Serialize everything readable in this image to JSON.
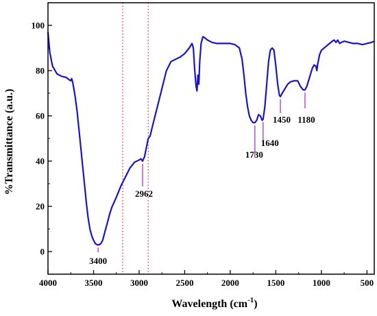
{
  "chart_data": {
    "type": "line",
    "xlabel": "Wavelength (cm",
    "xlabel_sup": "-1",
    "xlabel_end": ")",
    "ylabel": "%Transmittance (a.u.)",
    "xlim": [
      4000,
      420
    ],
    "ylim": [
      -10,
      110
    ],
    "x_reversed": true,
    "x_ticks": [
      4000,
      3500,
      3000,
      2500,
      2000,
      1500,
      1000,
      500
    ],
    "x_tick_labels": [
      "4000",
      "3500",
      "3000",
      "2500",
      "2000",
      "1500",
      "1000",
      "500"
    ],
    "y_ticks": [
      0,
      20,
      40,
      60,
      80,
      100
    ],
    "y_tick_labels": [
      "0",
      "20",
      "40",
      "60",
      "80",
      "100"
    ],
    "grid": false,
    "line_color": "#1a12c8",
    "marker_color": "#b24fd6",
    "ref_line_color": "#e0302a",
    "reference_lines_x": [
      3180,
      2900
    ],
    "series": [
      {
        "points": [
          [
            4000,
            97
          ],
          [
            3980,
            88
          ],
          [
            3950,
            82
          ],
          [
            3900,
            78.5
          ],
          [
            3850,
            77.5
          ],
          [
            3800,
            77
          ],
          [
            3770,
            76
          ],
          [
            3750,
            75.5
          ],
          [
            3740,
            76.5
          ],
          [
            3730,
            75
          ],
          [
            3720,
            73
          ],
          [
            3700,
            68
          ],
          [
            3680,
            62
          ],
          [
            3660,
            54
          ],
          [
            3640,
            46
          ],
          [
            3620,
            38
          ],
          [
            3600,
            30
          ],
          [
            3580,
            22
          ],
          [
            3560,
            15
          ],
          [
            3540,
            10
          ],
          [
            3520,
            7
          ],
          [
            3500,
            5
          ],
          [
            3480,
            3.5
          ],
          [
            3460,
            3
          ],
          [
            3440,
            3
          ],
          [
            3420,
            3.5
          ],
          [
            3400,
            5
          ],
          [
            3380,
            8
          ],
          [
            3360,
            11
          ],
          [
            3340,
            14
          ],
          [
            3320,
            17
          ],
          [
            3300,
            19.5
          ],
          [
            3250,
            24
          ],
          [
            3200,
            29
          ],
          [
            3150,
            33
          ],
          [
            3100,
            37
          ],
          [
            3050,
            39.5
          ],
          [
            3000,
            40.5
          ],
          [
            2980,
            41
          ],
          [
            2962,
            40
          ],
          [
            2940,
            42
          ],
          [
            2920,
            46
          ],
          [
            2900,
            50
          ],
          [
            2880,
            51
          ],
          [
            2850,
            56
          ],
          [
            2800,
            64
          ],
          [
            2750,
            72
          ],
          [
            2700,
            80
          ],
          [
            2650,
            84
          ],
          [
            2600,
            85
          ],
          [
            2550,
            86
          ],
          [
            2500,
            87.5
          ],
          [
            2450,
            90
          ],
          [
            2420,
            92
          ],
          [
            2405,
            90
          ],
          [
            2390,
            80
          ],
          [
            2375,
            73
          ],
          [
            2365,
            71
          ],
          [
            2355,
            78
          ],
          [
            2345,
            74
          ],
          [
            2335,
            84
          ],
          [
            2320,
            92
          ],
          [
            2300,
            95
          ],
          [
            2280,
            94.5
          ],
          [
            2250,
            93.5
          ],
          [
            2200,
            92.5
          ],
          [
            2150,
            92
          ],
          [
            2100,
            92
          ],
          [
            2050,
            92
          ],
          [
            2000,
            92
          ],
          [
            1950,
            91.5
          ],
          [
            1900,
            90
          ],
          [
            1870,
            85
          ],
          [
            1850,
            78
          ],
          [
            1830,
            70
          ],
          [
            1810,
            64
          ],
          [
            1790,
            60
          ],
          [
            1770,
            58
          ],
          [
            1750,
            57
          ],
          [
            1730,
            57
          ],
          [
            1710,
            58
          ],
          [
            1690,
            60.5
          ],
          [
            1670,
            60
          ],
          [
            1650,
            58
          ],
          [
            1640,
            58.5
          ],
          [
            1620,
            64
          ],
          [
            1600,
            74
          ],
          [
            1580,
            84
          ],
          [
            1560,
            89
          ],
          [
            1540,
            90
          ],
          [
            1520,
            89
          ],
          [
            1500,
            82
          ],
          [
            1480,
            74
          ],
          [
            1460,
            69
          ],
          [
            1450,
            68.5
          ],
          [
            1430,
            70
          ],
          [
            1400,
            72
          ],
          [
            1370,
            74
          ],
          [
            1340,
            75
          ],
          [
            1300,
            75.5
          ],
          [
            1260,
            75.5
          ],
          [
            1230,
            73
          ],
          [
            1200,
            71.5
          ],
          [
            1180,
            71.5
          ],
          [
            1160,
            73
          ],
          [
            1130,
            77
          ],
          [
            1100,
            81
          ],
          [
            1080,
            82.5
          ],
          [
            1060,
            82
          ],
          [
            1050,
            80
          ],
          [
            1040,
            83
          ],
          [
            1020,
            87
          ],
          [
            1000,
            89
          ],
          [
            970,
            90
          ],
          [
            940,
            91
          ],
          [
            910,
            92
          ],
          [
            880,
            93
          ],
          [
            860,
            93.5
          ],
          [
            840,
            92.5
          ],
          [
            820,
            93.5
          ],
          [
            800,
            92
          ],
          [
            780,
            92.5
          ],
          [
            750,
            93
          ],
          [
            700,
            92.5
          ],
          [
            650,
            92
          ],
          [
            600,
            92
          ],
          [
            550,
            91.5
          ],
          [
            500,
            92
          ],
          [
            450,
            92.5
          ],
          [
            420,
            93
          ]
        ]
      }
    ],
    "annotations": [
      {
        "label": "3400",
        "x": 3450,
        "y": 3,
        "side": "below"
      },
      {
        "label": "2962",
        "x": 2962,
        "y": 40,
        "side": "below"
      },
      {
        "label": "1730",
        "x": 1730,
        "y": 57,
        "side": "below"
      },
      {
        "label": "1640",
        "x": 1640,
        "y": 58.5,
        "side": "below"
      },
      {
        "label": "1450",
        "x": 1450,
        "y": 68.5,
        "side": "below"
      },
      {
        "label": "1180",
        "x": 1180,
        "y": 71.5,
        "side": "below"
      }
    ]
  }
}
